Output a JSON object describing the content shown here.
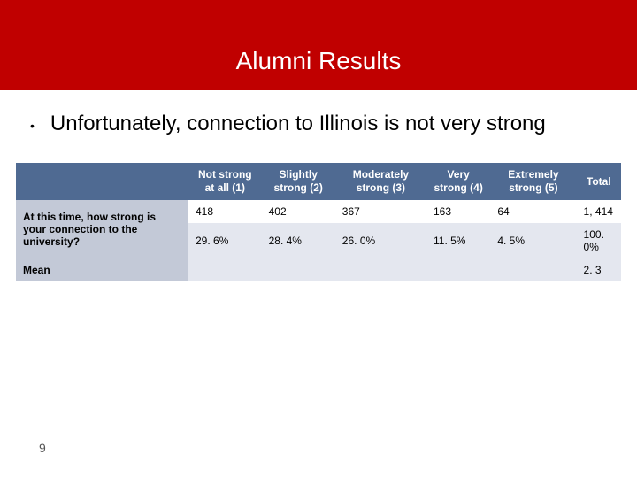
{
  "slide": {
    "title": "Alumni Results",
    "bullet": "Unfortunately, connection to Illinois is not very strong",
    "page_number": "9"
  },
  "table": {
    "type": "table",
    "header_bg": "#4f6a92",
    "header_fg": "#ffffff",
    "rowlabel_bg": "#c3c9d7",
    "stripe_bg": "#e4e7ef",
    "columns": [
      "Not strong at all (1)",
      "Slightly strong (2)",
      "Moderately strong (3)",
      "Very strong (4)",
      "Extremely strong (5)",
      "Total"
    ],
    "question": " At this time, how strong is your connection to the university?",
    "counts": [
      "418",
      "402",
      "367",
      "163",
      "64",
      "1, 414"
    ],
    "percents": [
      "29. 6%",
      "28. 4%",
      "26. 0%",
      "11. 5%",
      "4. 5%",
      "100. 0%"
    ],
    "mean_label": "Mean",
    "mean_value": "2. 3"
  }
}
